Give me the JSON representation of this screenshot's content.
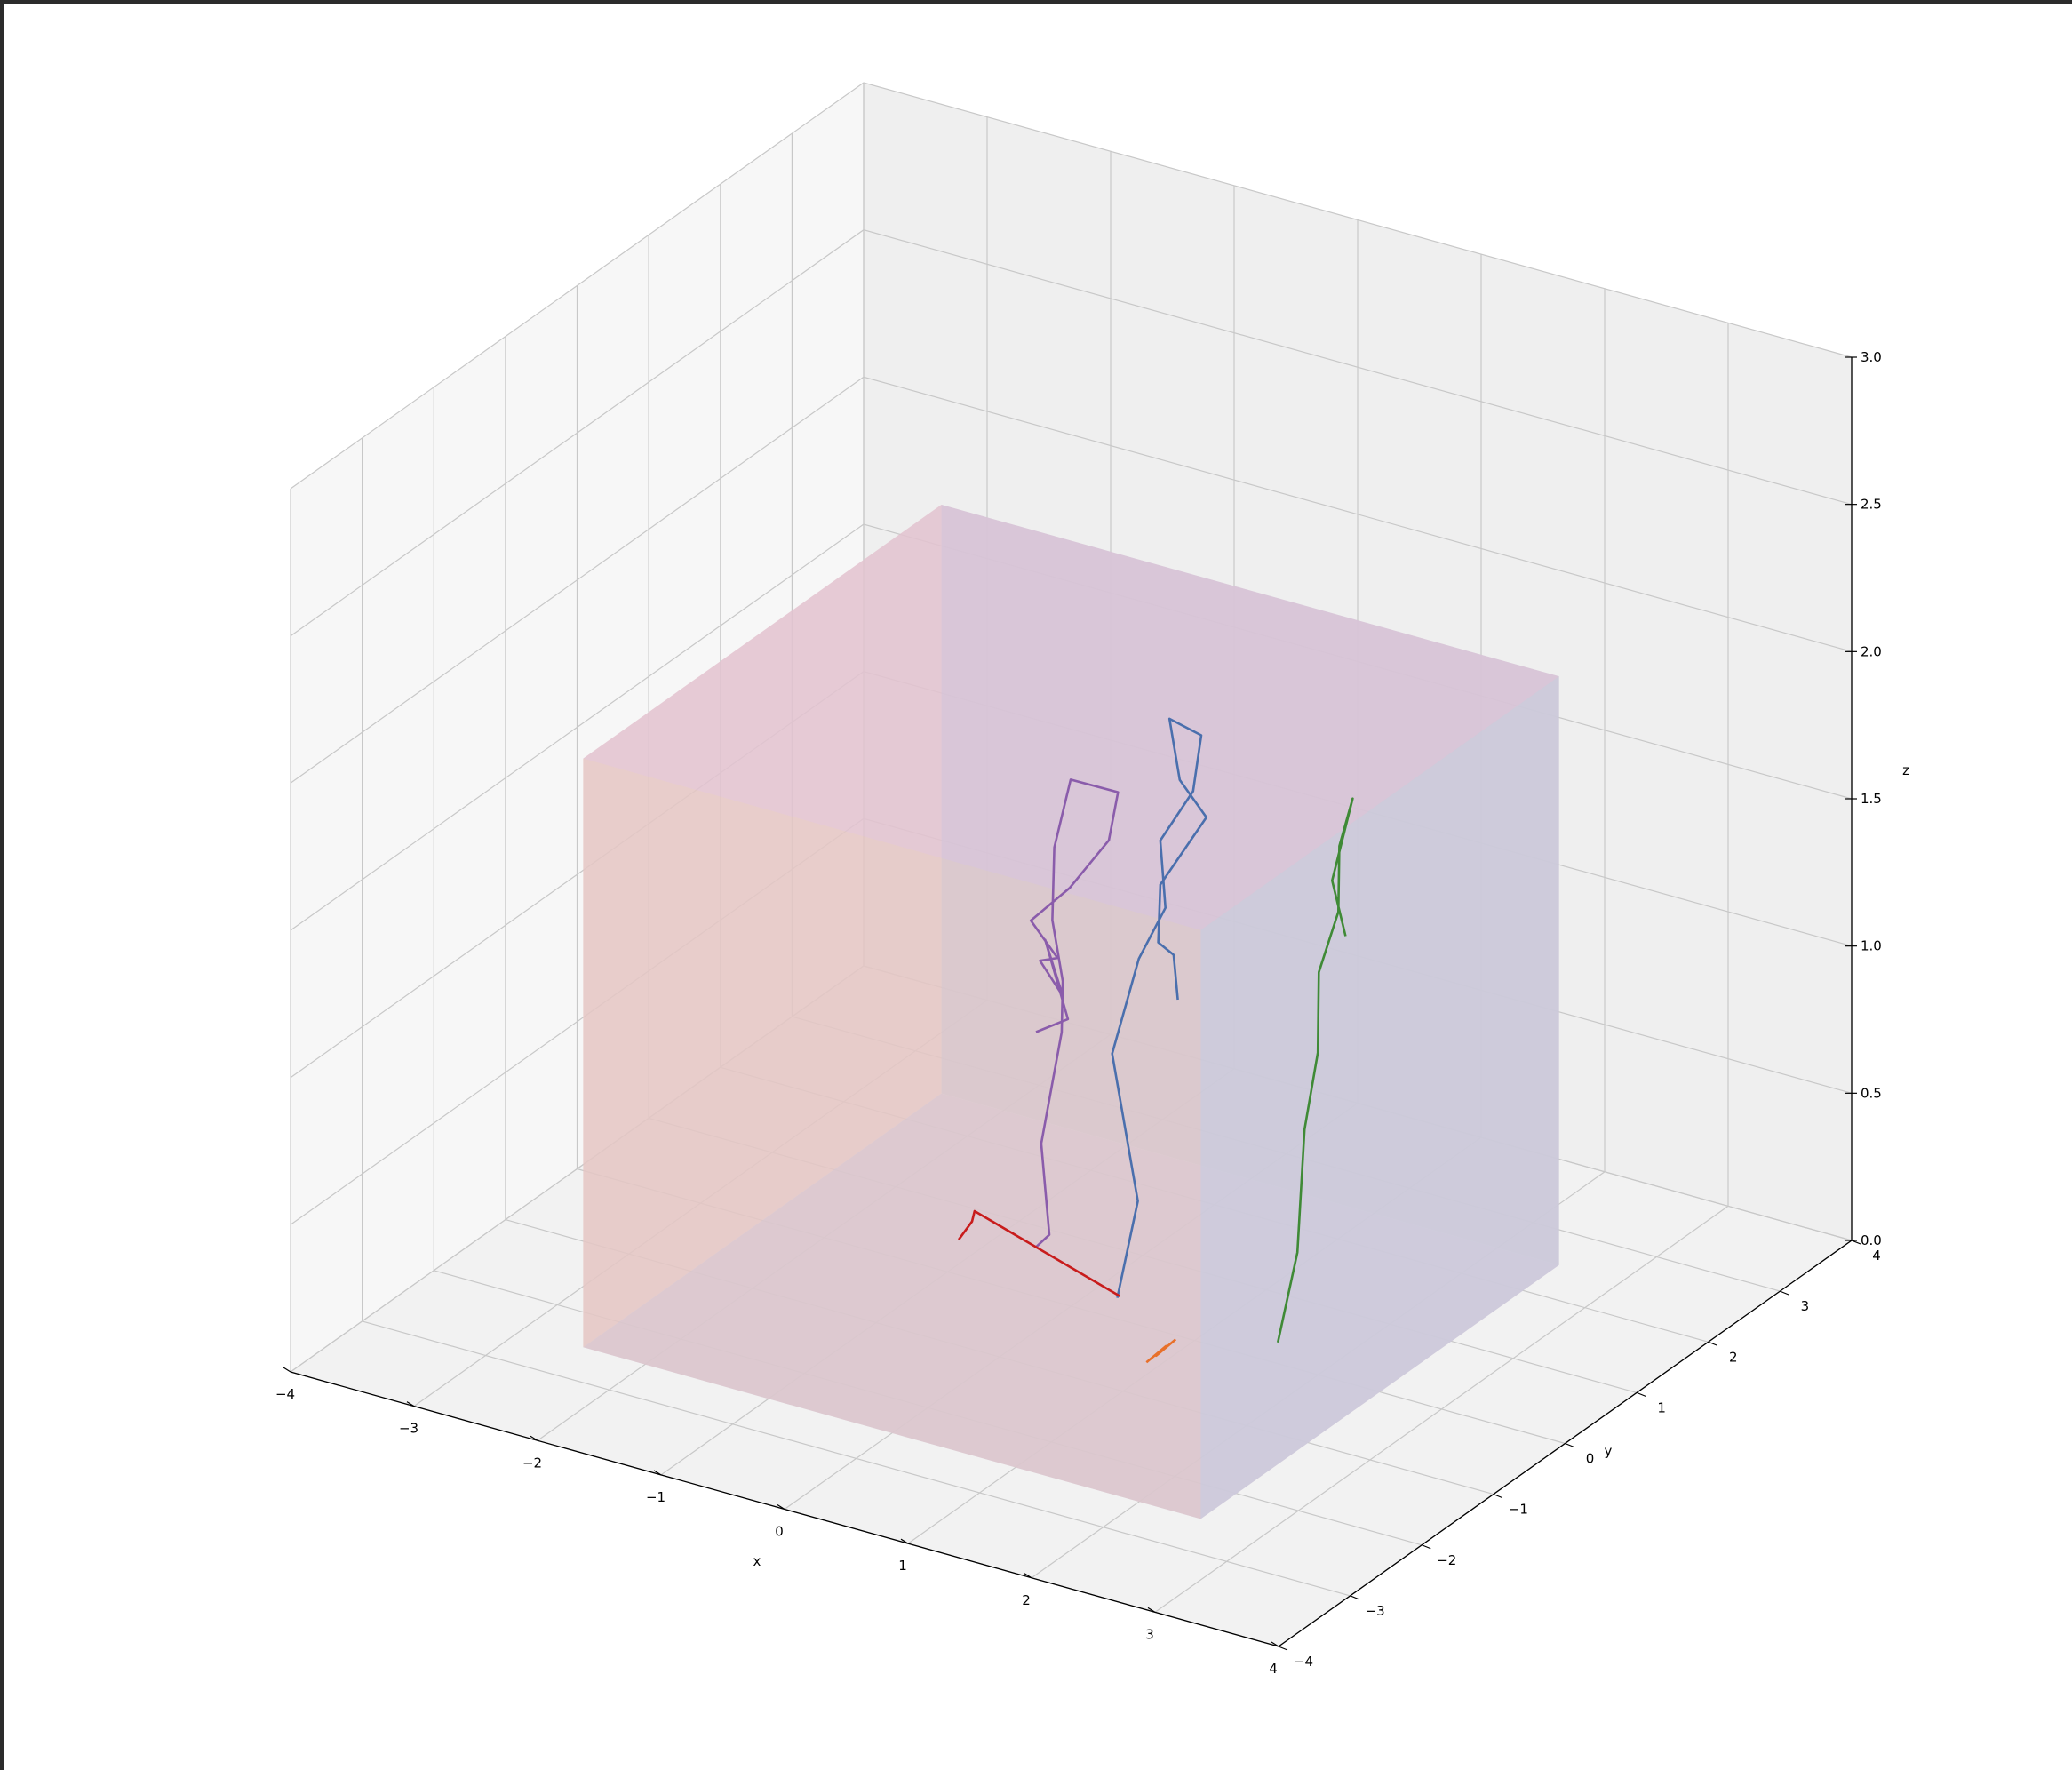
{
  "window": {
    "frame_color": "#2b2b2b"
  },
  "chart_data": {
    "type": "line3d",
    "title": "",
    "xlabel": "x",
    "ylabel": "y",
    "zlabel": "z",
    "xlim": [
      -4,
      4
    ],
    "ylim": [
      -4,
      4
    ],
    "zlim": [
      0,
      3
    ],
    "xticks": [
      "−4",
      "−3",
      "−2",
      "−1",
      "0",
      "1",
      "2",
      "3",
      "4"
    ],
    "yticks": [
      "−4",
      "−3",
      "−2",
      "−1",
      "0",
      "1",
      "2",
      "3",
      "4"
    ],
    "zticks": [
      "0.0",
      "0.5",
      "1.0",
      "1.5",
      "2.0",
      "2.5",
      "3.0"
    ],
    "grid": true,
    "pane_color": "#ececec",
    "box": {
      "x": [
        -2.5,
        2.5
      ],
      "y": [
        -2.5,
        2.5
      ],
      "z": [
        0,
        2
      ],
      "face_colors": {
        "bottom": "#d9c4db",
        "top": "#d8c3d7",
        "back": "#d6c4d6",
        "side": "#c9cbdb",
        "front": "#ddc8c4",
        "inner": "#f4c3c3"
      }
    },
    "series": [
      {
        "color": "#8a5cab",
        "points": [
          [
            -0.4,
            0.2,
            0.12
          ],
          [
            -0.35,
            0.3,
            0.15
          ],
          [
            -0.3,
            0.1,
            0.5
          ],
          [
            -0.25,
            0.3,
            0.85
          ],
          [
            -0.3,
            0.4,
            1.0
          ],
          [
            -0.5,
            0.6,
            1.15
          ],
          [
            -0.6,
            0.8,
            1.35
          ],
          [
            -0.7,
            1.2,
            1.5
          ],
          [
            -0.2,
            1.0,
            1.55
          ],
          [
            -0.1,
            0.7,
            1.45
          ],
          [
            -0.3,
            0.5,
            1.3
          ],
          [
            -0.5,
            0.3,
            1.2
          ],
          [
            -0.4,
            0.5,
            1.05
          ],
          [
            -0.6,
            0.6,
            1.0
          ],
          [
            -0.3,
            0.4,
            0.95
          ],
          [
            -0.5,
            0.5,
            1.1
          ],
          [
            -0.2,
            0.3,
            0.9
          ],
          [
            -0.4,
            0.2,
            0.85
          ]
        ]
      },
      {
        "color": "#4a6fad",
        "points": [
          [
            0.2,
            0.3,
            0.0
          ],
          [
            0.25,
            0.5,
            0.3
          ],
          [
            0.1,
            0.4,
            0.8
          ],
          [
            0.2,
            0.6,
            1.1
          ],
          [
            0.3,
            0.8,
            1.25
          ],
          [
            0.2,
            0.9,
            1.45
          ],
          [
            0.35,
            1.1,
            1.6
          ],
          [
            0.3,
            1.3,
            1.75
          ],
          [
            0.1,
            1.2,
            1.8
          ],
          [
            0.3,
            1.0,
            1.65
          ],
          [
            0.4,
            1.2,
            1.5
          ],
          [
            0.2,
            0.9,
            1.3
          ],
          [
            0.3,
            0.7,
            1.15
          ],
          [
            0.25,
            1.0,
            1.05
          ],
          [
            0.4,
            0.8,
            0.95
          ]
        ]
      },
      {
        "color": "#3f8a36",
        "points": [
          [
            1.5,
            0.3,
            0.0
          ],
          [
            1.6,
            0.4,
            0.3
          ],
          [
            1.6,
            0.5,
            0.7
          ],
          [
            1.65,
            0.6,
            0.95
          ],
          [
            1.6,
            0.7,
            1.2
          ],
          [
            1.7,
            0.8,
            1.4
          ],
          [
            1.65,
            0.9,
            1.6
          ],
          [
            1.7,
            1.0,
            1.75
          ],
          [
            1.65,
            0.8,
            1.5
          ],
          [
            1.7,
            0.9,
            1.3
          ]
        ]
      },
      {
        "color": "#e8702a",
        "points": [
          [
            0.9,
            -0.5,
            0.0
          ],
          [
            1.0,
            -0.4,
            0.05
          ],
          [
            0.95,
            -0.45,
            0.02
          ],
          [
            1.05,
            -0.35,
            0.07
          ]
        ]
      },
      {
        "color": "#c81c1c",
        "points": [
          [
            -1.2,
            0.5,
            0.0
          ],
          [
            -1.15,
            0.6,
            0.05
          ],
          [
            -1.1,
            0.55,
            0.1
          ],
          [
            0.25,
            0.25,
            0.02
          ]
        ]
      }
    ]
  }
}
